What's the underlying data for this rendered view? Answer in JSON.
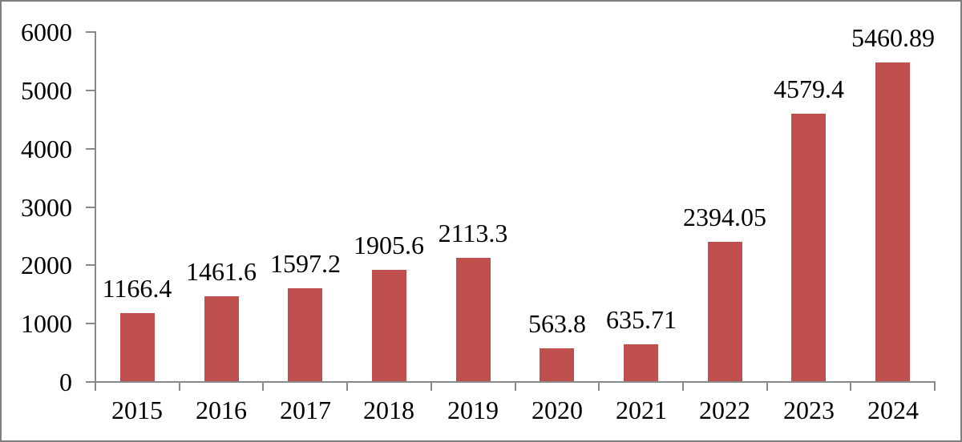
{
  "chart_data": {
    "type": "bar",
    "title": "",
    "xlabel": "",
    "ylabel": "",
    "categories": [
      "2015",
      "2016",
      "2017",
      "2018",
      "2019",
      "2020",
      "2021",
      "2022",
      "2023",
      "2024"
    ],
    "values": [
      1166.4,
      1461.6,
      1597.2,
      1905.6,
      2113.3,
      563.8,
      635.71,
      2394.05,
      4579.4,
      5460.89
    ],
    "data_labels": [
      "1166.4",
      "1461.6",
      "1597.2",
      "1905.6",
      "2113.3",
      "563.8",
      "635.71",
      "2394.05",
      "4579.4",
      "5460.89"
    ],
    "yticks": [
      0,
      1000,
      2000,
      3000,
      4000,
      5000,
      6000
    ],
    "ytick_labels": [
      "0",
      "1000",
      "2000",
      "3000",
      "4000",
      "5000",
      "6000"
    ],
    "ylim": [
      0,
      6000
    ],
    "grid": false,
    "legend": "none",
    "data_label_position": "outside-end"
  },
  "colors": {
    "bar_fill": "#c0504d",
    "axis_line": "#898989",
    "frame_border": "#7f7f7f",
    "text": "#000000",
    "background": "#ffffff"
  }
}
